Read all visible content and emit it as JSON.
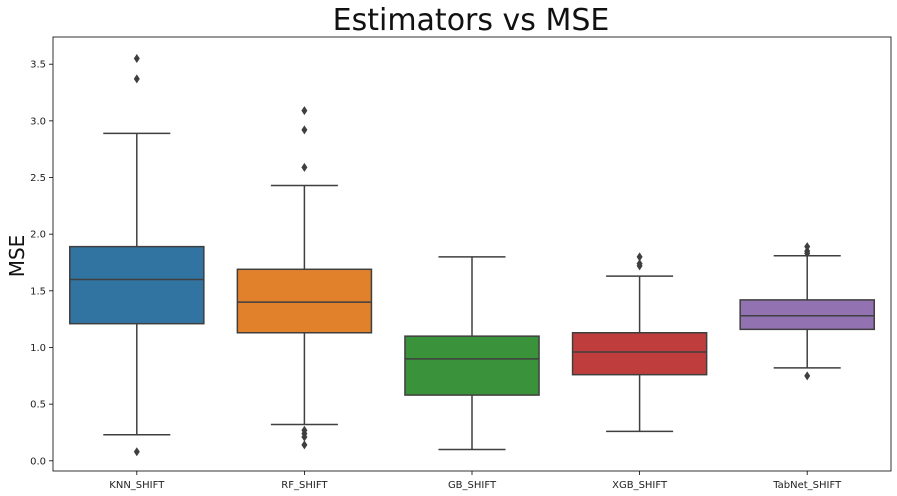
{
  "chart_data": {
    "type": "box",
    "title": "Estimators vs MSE",
    "xlabel": "",
    "ylabel": "MSE",
    "ylim": [
      -0.09,
      3.74
    ],
    "yticks": [
      0.0,
      0.5,
      1.0,
      1.5,
      2.0,
      2.5,
      3.0,
      3.5
    ],
    "ytick_labels": [
      "0.0",
      "0.5",
      "1.0",
      "1.5",
      "2.0",
      "2.5",
      "3.0",
      "3.5"
    ],
    "grid": false,
    "categories": [
      "KNN_SHIFT",
      "RF_SHIFT",
      "GB_SHIFT",
      "XGB_SHIFT",
      "TabNet_SHIFT"
    ],
    "boxes": [
      {
        "name": "KNN_SHIFT",
        "color": "#3274a1",
        "whisker_low": 0.23,
        "q1": 1.21,
        "median": 1.6,
        "q3": 1.89,
        "whisker_high": 2.89,
        "outliers": [
          0.08,
          3.37,
          3.55
        ]
      },
      {
        "name": "RF_SHIFT",
        "color": "#e1812c",
        "whisker_low": 0.32,
        "q1": 1.13,
        "median": 1.4,
        "q3": 1.69,
        "whisker_high": 2.43,
        "outliers": [
          0.14,
          0.21,
          0.24,
          0.27,
          2.59,
          2.92,
          3.09
        ]
      },
      {
        "name": "GB_SHIFT",
        "color": "#3a923a",
        "whisker_low": 0.1,
        "q1": 0.58,
        "median": 0.9,
        "q3": 1.1,
        "whisker_high": 1.8,
        "outliers": []
      },
      {
        "name": "XGB_SHIFT",
        "color": "#c03d3e",
        "whisker_low": 0.26,
        "q1": 0.76,
        "median": 0.96,
        "q3": 1.13,
        "whisker_high": 1.63,
        "outliers": [
          1.72,
          1.74,
          1.8
        ]
      },
      {
        "name": "TabNet_SHIFT",
        "color": "#9372b2",
        "whisker_low": 0.82,
        "q1": 1.16,
        "median": 1.28,
        "q3": 1.42,
        "whisker_high": 1.81,
        "outliers": [
          0.75,
          1.83,
          1.85,
          1.89
        ]
      }
    ]
  }
}
